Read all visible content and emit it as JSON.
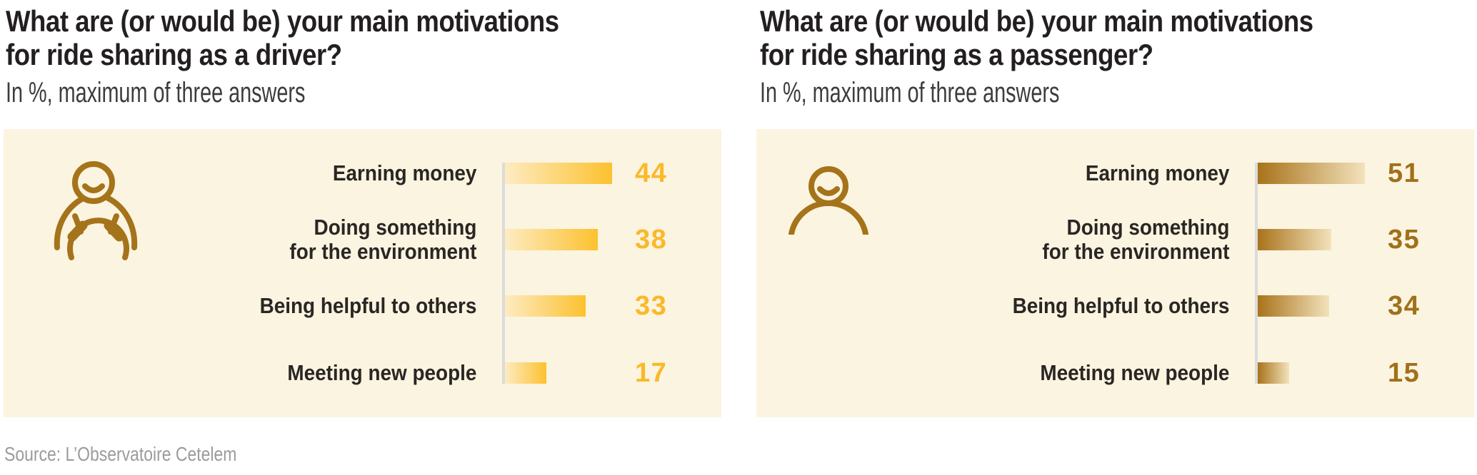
{
  "page": {
    "source": "Source: L’Observatoire Cetelem",
    "panel_bg": "#FBF4E0",
    "axis_color": "#DBDBDB"
  },
  "chart_data": [
    {
      "type": "bar",
      "orientation": "horizontal",
      "title": "What are (or would be) your main motivations for ride sharing as a driver?",
      "title_lines": [
        "What are (or would be) your main motivations",
        "for ride sharing as a driver?"
      ],
      "subtitle": "In %, maximum of three answers",
      "unit": "%",
      "categories": [
        "Earning money",
        "Doing something for the environment",
        "Being helpful to others",
        "Meeting new people"
      ],
      "label_lines": [
        [
          "Earning money"
        ],
        [
          "Doing something",
          "for the environment"
        ],
        [
          "Being helpful to others"
        ],
        [
          "Meeting new people"
        ]
      ],
      "values": [
        44,
        38,
        33,
        17
      ],
      "value_labels_shown": true,
      "grid": false,
      "legend": false,
      "value_color": "#FBB828",
      "bar_gradient": {
        "from": "#FDEBC2",
        "to": "#FCC12E"
      },
      "icon": "driver-at-steering-wheel-icon",
      "icon_color": "#A5731A"
    },
    {
      "type": "bar",
      "orientation": "horizontal",
      "title": "What are (or would be) your main motivations for ride sharing as a passenger?",
      "title_lines": [
        "What are (or would be) your main motivations",
        "for ride sharing as a passenger?"
      ],
      "subtitle": "In %, maximum of three answers",
      "unit": "%",
      "categories": [
        "Earning money",
        "Doing something for the environment",
        "Being helpful to others",
        "Meeting new people"
      ],
      "label_lines": [
        [
          "Earning money"
        ],
        [
          "Doing something",
          "for the environment"
        ],
        [
          "Being helpful to others"
        ],
        [
          "Meeting new people"
        ]
      ],
      "values": [
        51,
        35,
        34,
        15
      ],
      "value_labels_shown": true,
      "grid": false,
      "legend": false,
      "value_color": "#A0701A",
      "bar_gradient": {
        "from": "#A8731B",
        "to": "#F3E2BC"
      },
      "icon": "passenger-person-icon",
      "icon_color": "#A5731A"
    }
  ]
}
